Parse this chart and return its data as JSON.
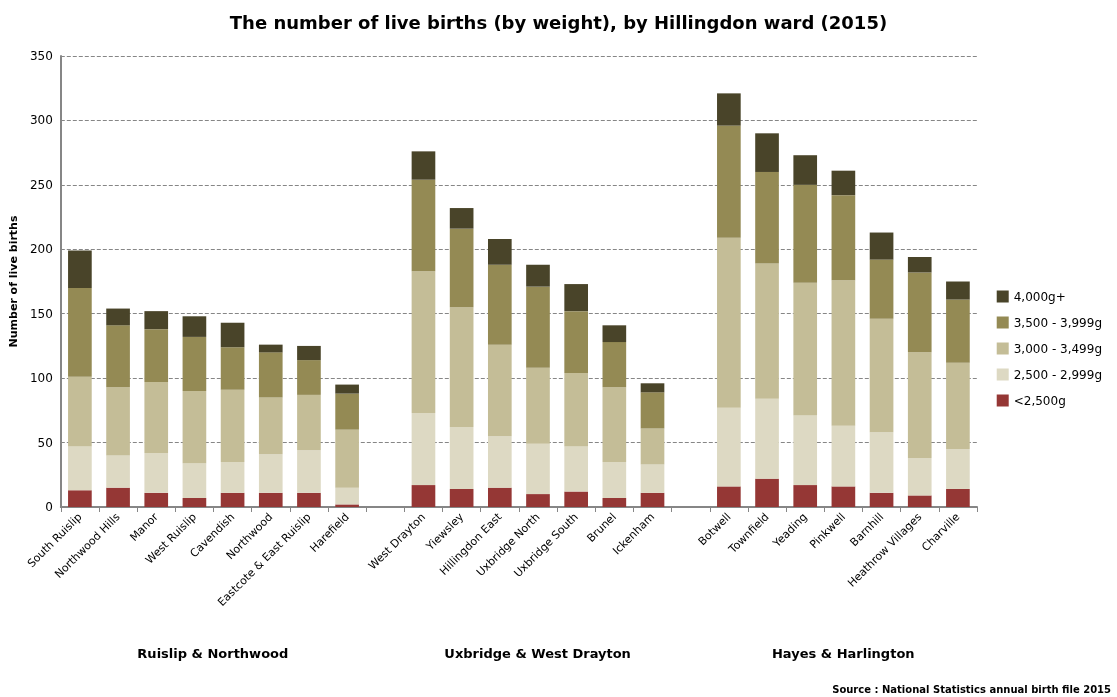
{
  "chart_data": {
    "type": "bar",
    "title": "The number of live births (by weight), by Hillingdon ward (2015)",
    "ylabel": "Number of live births",
    "categories": [
      "South Ruislip",
      "Northwood Hills",
      "Manor",
      "West Ruislip",
      "Cavendish",
      "Northwood",
      "Eastcote & East Ruislip",
      "Harefield",
      null,
      "West Drayton",
      "Yiewsley",
      "Hillingdon East",
      "Uxbridge North",
      "Uxbridge South",
      "Brunel",
      "Ickenham",
      null,
      "Botwell",
      "Townfield",
      "Yeading",
      "Pinkwell",
      "Barnhill",
      "Heathrow Villages",
      "Charville"
    ],
    "series": [
      {
        "name": "<2,500g",
        "color": "#953735",
        "values": [
          13,
          15,
          11,
          7,
          11,
          11,
          11,
          2,
          null,
          17,
          14,
          15,
          10,
          12,
          7,
          11,
          null,
          16,
          22,
          17,
          16,
          11,
          9,
          14
        ]
      },
      {
        "name": "2,500 - 2,999g",
        "color": "#ddd9c3",
        "values": [
          34,
          25,
          31,
          27,
          24,
          30,
          33,
          13,
          null,
          56,
          48,
          40,
          39,
          35,
          28,
          22,
          null,
          61,
          62,
          54,
          47,
          47,
          29,
          31
        ]
      },
      {
        "name": "3,000 - 3,499g",
        "color": "#c4bd97",
        "values": [
          54,
          53,
          55,
          56,
          56,
          44,
          43,
          45,
          null,
          110,
          93,
          71,
          59,
          57,
          58,
          28,
          null,
          132,
          105,
          103,
          113,
          88,
          82,
          67
        ]
      },
      {
        "name": "3,500 - 3,999g",
        "color": "#948a54",
        "values": [
          69,
          48,
          41,
          42,
          33,
          35,
          27,
          28,
          null,
          71,
          61,
          62,
          63,
          48,
          35,
          28,
          null,
          87,
          71,
          76,
          66,
          46,
          62,
          49
        ]
      },
      {
        "name": "4,000g+",
        "color": "#494429",
        "values": [
          29,
          13,
          14,
          16,
          19,
          6,
          11,
          7,
          null,
          22,
          16,
          20,
          17,
          21,
          13,
          7,
          null,
          25,
          30,
          23,
          19,
          21,
          12,
          14
        ]
      }
    ],
    "stacked": true,
    "ylim": [
      0,
      350
    ],
    "yticks": [
      0,
      50,
      100,
      150,
      200,
      250,
      300,
      350
    ],
    "grid": "y",
    "legend": "right",
    "annotations": [
      "Ruislip & Northwood",
      "Uxbridge & West Drayton",
      "Hayes & Harlington",
      "Source : National Statistics annual birth file 2015"
    ]
  }
}
